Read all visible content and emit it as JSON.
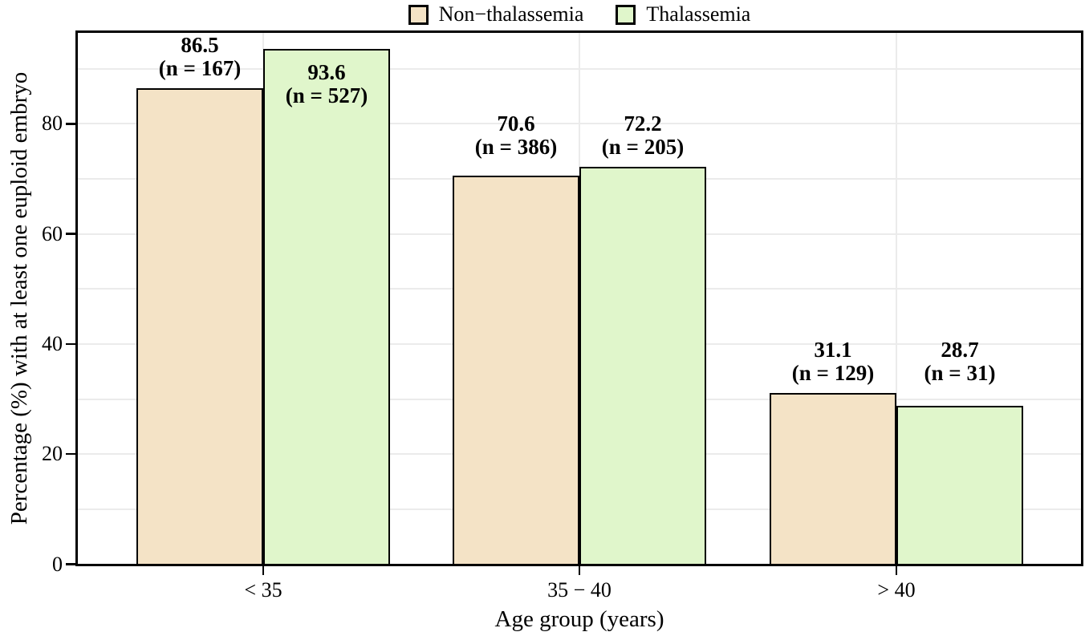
{
  "chart_data": {
    "type": "bar",
    "title": "",
    "xlabel": "Age group (years)",
    "ylabel": "Percentage (%) with at least one euploid embryo",
    "categories": [
      "< 35",
      "35 − 40",
      "> 40"
    ],
    "series": [
      {
        "name": "Non−thalassemia",
        "color": "#f4e3c6",
        "values": [
          86.5,
          70.6,
          31.1
        ],
        "counts": [
          167,
          386,
          129
        ],
        "count_labels": [
          "(n = 167)",
          "(n = 386)",
          "(n = 129)"
        ]
      },
      {
        "name": "Thalassemia",
        "color": "#e0f6cb",
        "values": [
          93.6,
          72.2,
          28.7
        ],
        "counts": [
          527,
          205,
          31
        ],
        "count_labels": [
          "(n = 527)",
          "(n = 205)",
          "(n = 31)"
        ]
      }
    ],
    "yticks": [
      0,
      20,
      40,
      60,
      80
    ],
    "ylim": [
      0,
      96.5
    ],
    "grid": {
      "horizontal_step": 10,
      "vertical_at_category_centers": true,
      "color": "#ebebeb"
    },
    "legend_position": "top-center",
    "bar_border_color": "#000000",
    "panel_border_color": "#000000"
  }
}
